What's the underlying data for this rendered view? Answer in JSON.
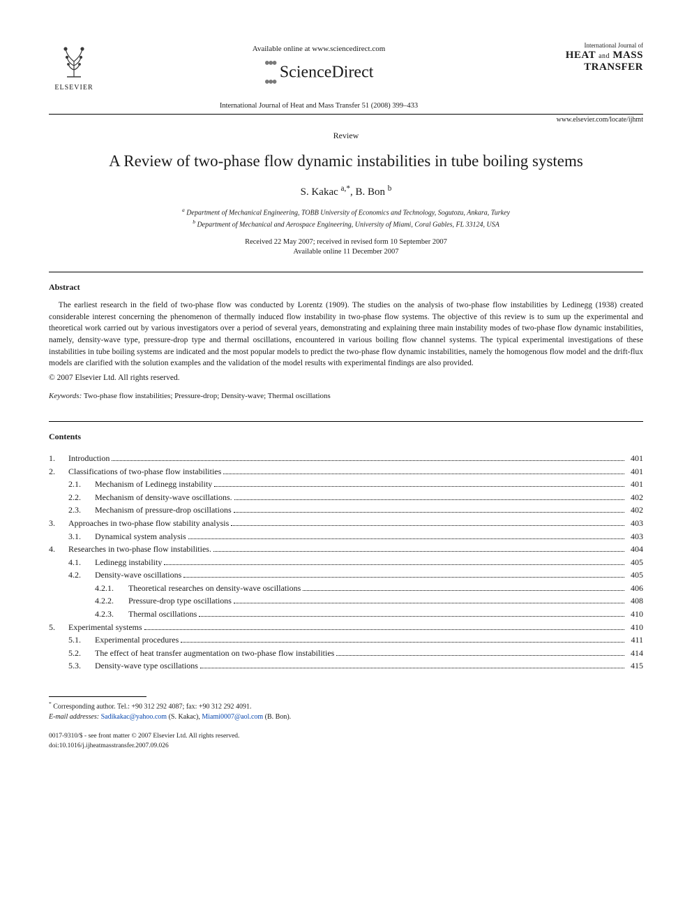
{
  "header": {
    "publisher_label": "ELSEVIER",
    "available_online": "Available online at www.sciencedirect.com",
    "science_direct": "ScienceDirect",
    "citation": "International Journal of Heat and Mass Transfer 51 (2008) 399–433",
    "journal_intl": "International Journal of",
    "journal_line1": "HEAT",
    "journal_and": "and",
    "journal_line2": "MASS",
    "journal_line3": "TRANSFER",
    "locate_url": "www.elsevier.com/locate/ijhmt"
  },
  "document_type": "Review",
  "title": "A Review of two-phase flow dynamic instabilities in tube boiling systems",
  "authors": "S. Kakac ",
  "author_a_sup": "a,*",
  "author_sep": ", B. Bon ",
  "author_b_sup": "b",
  "affiliations": {
    "a": "Department of Mechanical Engineering, TOBB University of Economics and Technology, Sogutozu, Ankara, Turkey",
    "b": "Department of Mechanical and Aerospace Engineering, University of Miami, Coral Gables, FL 33124, USA"
  },
  "dates": {
    "received": "Received 22 May 2007; received in revised form 10 September 2007",
    "online": "Available online 11 December 2007"
  },
  "abstract": {
    "heading": "Abstract",
    "body": "The earliest research in the field of two-phase flow was conducted by Lorentz (1909). The studies on the analysis of two-phase flow instabilities by Ledinegg (1938) created considerable interest concerning the phenomenon of thermally induced flow instability in two-phase flow systems. The objective of this review is to sum up the experimental and theoretical work carried out by various investigators over a period of several years, demonstrating and explaining three main instability modes of two-phase flow dynamic instabilities, namely, density-wave type, pressure-drop type and thermal oscillations, encountered in various boiling flow channel systems. The typical experimental investigations of these instabilities in tube boiling systems are indicated and the most popular models to predict the two-phase flow dynamic instabilities, namely the homogenous flow model and the drift-flux models are clarified with the solution examples and the validation of the model results with experimental findings are also provided.",
    "copyright": "© 2007 Elsevier Ltd. All rights reserved."
  },
  "keywords": {
    "label": "Keywords:",
    "text": "Two-phase flow instabilities; Pressure-drop; Density-wave; Thermal oscillations"
  },
  "contents_heading": "Contents",
  "toc": [
    {
      "level": 0,
      "num": "1.",
      "label": "Introduction",
      "page": "401"
    },
    {
      "level": 0,
      "num": "2.",
      "label": "Classifications of two-phase flow instabilities",
      "page": "401"
    },
    {
      "level": 1,
      "num": "2.1.",
      "label": "Mechanism of Ledinegg instability",
      "page": "401"
    },
    {
      "level": 1,
      "num": "2.2.",
      "label": "Mechanism of density-wave oscillations.",
      "page": "402"
    },
    {
      "level": 1,
      "num": "2.3.",
      "label": "Mechanism of pressure-drop oscillations",
      "page": "402"
    },
    {
      "level": 0,
      "num": "3.",
      "label": "Approaches in two-phase flow stability analysis",
      "page": "403"
    },
    {
      "level": 1,
      "num": "3.1.",
      "label": "Dynamical system analysis",
      "page": "403"
    },
    {
      "level": 0,
      "num": "4.",
      "label": "Researches in two-phase flow instabilities.",
      "page": "404"
    },
    {
      "level": 1,
      "num": "4.1.",
      "label": "Ledinegg instability",
      "page": "405"
    },
    {
      "level": 1,
      "num": "4.2.",
      "label": "Density-wave oscillations",
      "page": "405"
    },
    {
      "level": 2,
      "num": "4.2.1.",
      "label": "Theoretical researches on density-wave oscillations",
      "page": "406"
    },
    {
      "level": 2,
      "num": "4.2.2.",
      "label": "Pressure-drop type oscillations",
      "page": "408"
    },
    {
      "level": 2,
      "num": "4.2.3.",
      "label": "Thermal oscillations",
      "page": "410"
    },
    {
      "level": 0,
      "num": "5.",
      "label": "Experimental systems",
      "page": "410"
    },
    {
      "level": 1,
      "num": "5.1.",
      "label": "Experimental procedures",
      "page": "411"
    },
    {
      "level": 1,
      "num": "5.2.",
      "label": "The effect of heat transfer augmentation on two-phase flow instabilities",
      "page": "414"
    },
    {
      "level": 1,
      "num": "5.3.",
      "label": "Density-wave type oscillations",
      "page": "415"
    }
  ],
  "footnote": {
    "corresponding": "Corresponding author. Tel.: +90 312 292 4087; fax: +90 312 292 4091.",
    "email_label": "E-mail addresses:",
    "email1": "Sadikakac@yahoo.com",
    "email1_name": "(S. Kakac),",
    "email2": "Miami0007@aol.com",
    "email2_name": "(B. Bon)."
  },
  "issn": {
    "line1": "0017-9310/$ - see front matter © 2007 Elsevier Ltd. All rights reserved.",
    "doi": "doi:10.1016/j.ijheatmasstransfer.2007.09.026"
  },
  "colors": {
    "text": "#1a1a1a",
    "link": "#0645ad",
    "background": "#ffffff",
    "sd_dots": "#7a7a7a"
  }
}
